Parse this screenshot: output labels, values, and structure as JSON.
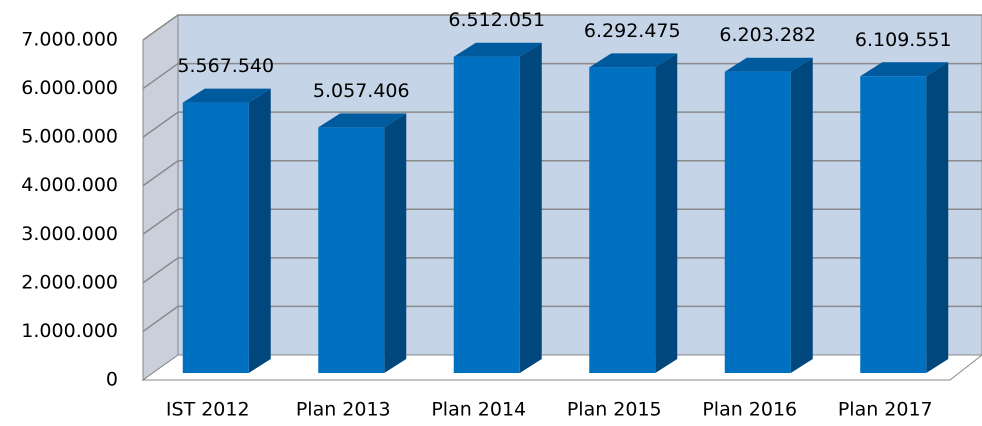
{
  "chart_data": {
    "type": "bar",
    "categories": [
      "IST 2012",
      "Plan 2013",
      "Plan 2014",
      "Plan 2015",
      "Plan 2016",
      "Plan 2017"
    ],
    "values": [
      5567540,
      5057406,
      6512051,
      6292475,
      6203282,
      6109551
    ],
    "value_labels": [
      "5.567.540",
      "5.057.406",
      "6.512.051",
      "6.292.475",
      "6.203.282",
      "6.109.551"
    ],
    "color": "#0070c0",
    "ylim": [
      0,
      7000000
    ],
    "yticks": [
      0,
      {
        "value": 1000000,
        "label": "1.000.000"
      },
      {
        "value": 2000000,
        "label": "2.000.000"
      },
      {
        "value": 3000000,
        "label": "3.000.000"
      },
      {
        "value": 4000000,
        "label": "4.000.000"
      },
      {
        "value": 5000000,
        "label": "5.000.000"
      },
      {
        "value": 6000000,
        "label": "6.000.000"
      },
      {
        "value": 7000000,
        "label": "7.000.000"
      }
    ],
    "grid": true
  }
}
